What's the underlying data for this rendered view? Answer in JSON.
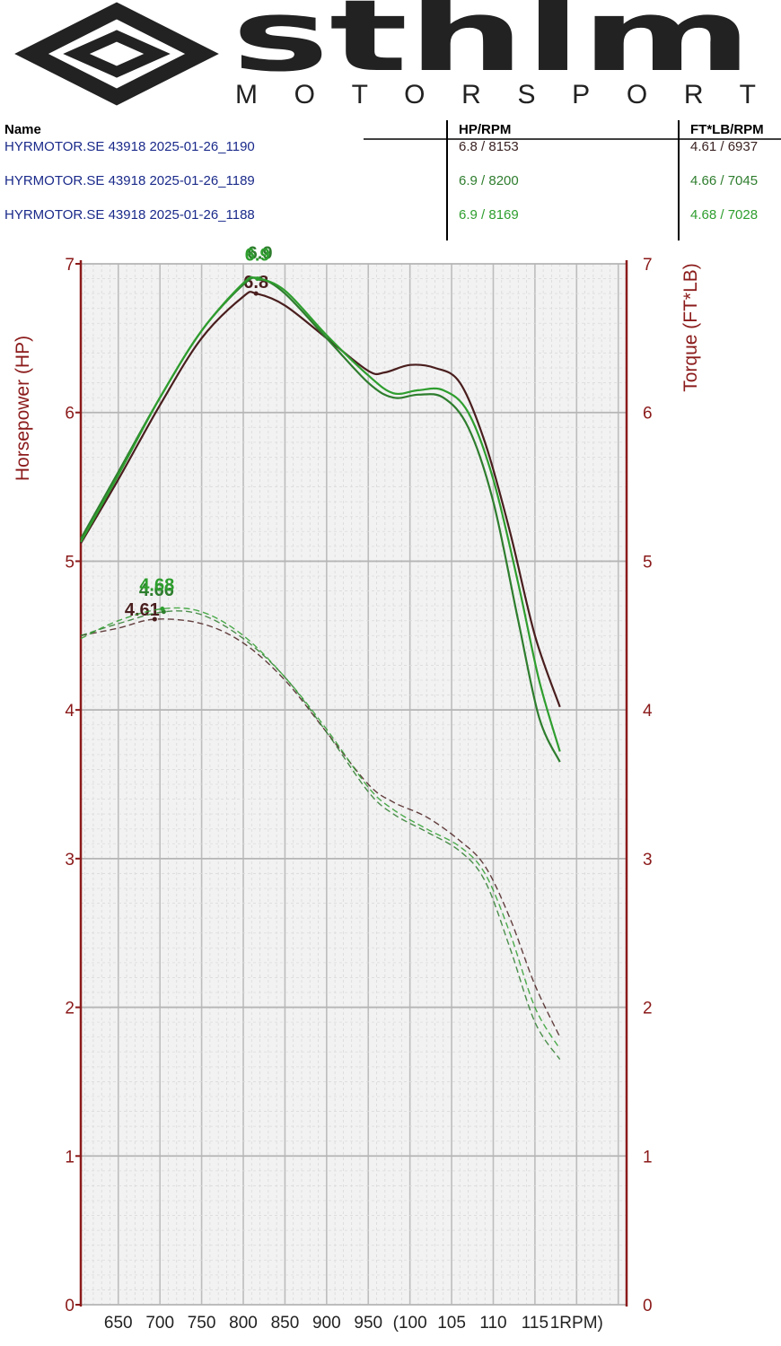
{
  "brand": {
    "name": "sthlm",
    "tagline": "MOTORSPORT",
    "logo_color": "#222222"
  },
  "legend": {
    "headers": [
      "Name",
      "HP/RPM",
      "FT*LB/RPM"
    ],
    "rows": [
      {
        "name": "HYRMOTOR.SE 43918 2025-01-26_1190",
        "hp": "6.8 / 8153",
        "tq": "4.61 / 6937",
        "name_color": "#1a2a8a",
        "value_color": "#3b2222"
      },
      {
        "name": "HYRMOTOR.SE 43918 2025-01-26_1189",
        "hp": "6.9 / 8200",
        "tq": "4.66 / 7045",
        "name_color": "#1a2a8a",
        "value_color": "#2e7d2e"
      },
      {
        "name": "HYRMOTOR.SE 43918 2025-01-26_1188",
        "hp": "6.9 / 8169",
        "tq": "4.68 / 7028",
        "name_color": "#1a2a8a",
        "value_color": "#2e9e2e"
      }
    ]
  },
  "chart_data": {
    "type": "line",
    "xlabel": "RPM",
    "ylabel_left": "Horsepower (HP)",
    "ylabel_right": "Torque (FT*LB)",
    "xlim": [
      6050,
      12600
    ],
    "ylim_left": [
      0,
      7
    ],
    "ylim_right": [
      0,
      7
    ],
    "y_ticks": [
      "0",
      "1",
      "2",
      "3",
      "4",
      "5",
      "6",
      "7"
    ],
    "x_ticks": [
      {
        "value": 6500,
        "label": "650"
      },
      {
        "value": 7000,
        "label": "700"
      },
      {
        "value": 7500,
        "label": "750"
      },
      {
        "value": 8000,
        "label": "800"
      },
      {
        "value": 8500,
        "label": "850"
      },
      {
        "value": 9000,
        "label": "900"
      },
      {
        "value": 9500,
        "label": "950"
      },
      {
        "value": 10000,
        "label": "(100"
      },
      {
        "value": 10500,
        "label": "105"
      },
      {
        "value": 11000,
        "label": "110"
      },
      {
        "value": 11500,
        "label": "115"
      },
      {
        "value": 12000,
        "label": "1RPM)"
      }
    ],
    "grid": true,
    "series": [
      {
        "name": "HYRMOTOR.SE 43918 2025-01-26_1190",
        "color": "#4a1e1e",
        "hp": {
          "x": [
            6050,
            6500,
            7000,
            7500,
            8000,
            8153,
            8500,
            9000,
            9500,
            9700,
            10000,
            10300,
            10600,
            10900,
            11200,
            11500,
            11800
          ],
          "y": [
            5.12,
            5.55,
            6.05,
            6.5,
            6.78,
            6.8,
            6.72,
            6.5,
            6.28,
            6.27,
            6.32,
            6.3,
            6.2,
            5.8,
            5.2,
            4.5,
            4.02
          ]
        },
        "hp_peak": {
          "x": 8153,
          "y": 6.8,
          "label": "6.8"
        },
        "tq": {
          "x": [
            6050,
            6500,
            6937,
            7500,
            8000,
            8500,
            9000,
            9500,
            9800,
            10200,
            10600,
            10900,
            11200,
            11500,
            11800
          ],
          "y": [
            4.5,
            4.55,
            4.61,
            4.58,
            4.45,
            4.2,
            3.85,
            3.5,
            3.38,
            3.28,
            3.12,
            2.95,
            2.6,
            2.15,
            1.8
          ]
        },
        "tq_peak": {
          "x": 6937,
          "y": 4.61,
          "label": "4.61"
        }
      },
      {
        "name": "HYRMOTOR.SE 43918 2025-01-26_1189",
        "color": "#2e7d2e",
        "hp": {
          "x": [
            6050,
            6500,
            7000,
            7500,
            8000,
            8200,
            8500,
            9000,
            9500,
            9800,
            10100,
            10400,
            10700,
            11000,
            11300,
            11550,
            11800
          ],
          "y": [
            5.15,
            5.6,
            6.1,
            6.55,
            6.86,
            6.9,
            6.8,
            6.5,
            6.2,
            6.1,
            6.12,
            6.1,
            5.9,
            5.4,
            4.6,
            3.95,
            3.65
          ]
        },
        "hp_peak": {
          "x": 8200,
          "y": 6.9,
          "label": "6.9"
        },
        "tq": {
          "x": [
            6050,
            6500,
            7045,
            7500,
            8000,
            8500,
            9000,
            9500,
            9800,
            10200,
            10600,
            10900,
            11200,
            11500,
            11800
          ],
          "y": [
            4.5,
            4.58,
            4.66,
            4.64,
            4.48,
            4.22,
            3.85,
            3.45,
            3.3,
            3.18,
            3.05,
            2.85,
            2.4,
            1.9,
            1.65
          ]
        },
        "tq_peak": {
          "x": 7045,
          "y": 4.66,
          "label": "4.66"
        }
      },
      {
        "name": "HYRMOTOR.SE 43918 2025-01-26_1188",
        "color": "#2e9e2e",
        "hp": {
          "x": [
            6050,
            6500,
            7000,
            7500,
            8000,
            8169,
            8500,
            9000,
            9500,
            9800,
            10100,
            10400,
            10700,
            11000,
            11300,
            11550,
            11800
          ],
          "y": [
            5.13,
            5.58,
            6.1,
            6.55,
            6.87,
            6.9,
            6.82,
            6.52,
            6.25,
            6.13,
            6.15,
            6.15,
            6.0,
            5.55,
            4.85,
            4.2,
            3.72
          ]
        },
        "hp_peak": {
          "x": 8169,
          "y": 6.9,
          "label": "6.9"
        },
        "tq": {
          "x": [
            6050,
            6500,
            7028,
            7500,
            8000,
            8500,
            9000,
            9500,
            9800,
            10200,
            10600,
            10900,
            11200,
            11500,
            11800
          ],
          "y": [
            4.48,
            4.6,
            4.68,
            4.66,
            4.5,
            4.22,
            3.87,
            3.48,
            3.33,
            3.2,
            3.08,
            2.9,
            2.5,
            2.0,
            1.72
          ]
        },
        "tq_peak": {
          "x": 7028,
          "y": 4.68,
          "label": "4.68"
        }
      }
    ]
  }
}
